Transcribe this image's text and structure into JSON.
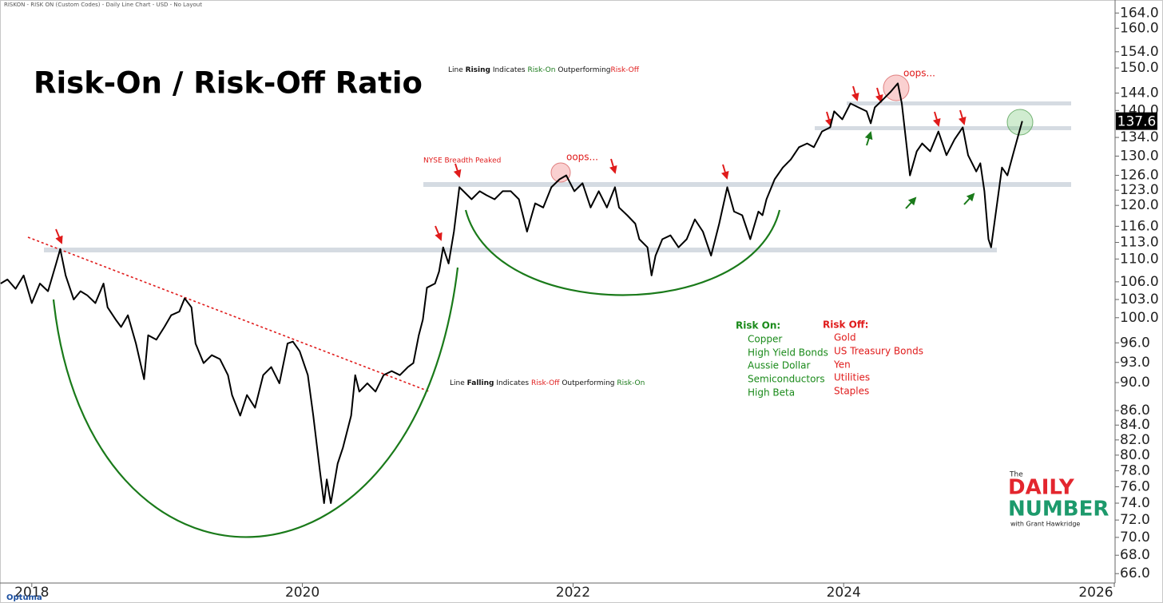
{
  "chart_data": {
    "type": "line",
    "header": "RISKON - RISK ON (Custom Codes) - Daily Line Chart - USD - No Layout",
    "title": "Risk-On / Risk-Off Ratio",
    "color": "#000000",
    "log_scale": true,
    "grid": false,
    "x": [
      2017.77,
      2017.82,
      2017.88,
      2017.94,
      2018.0,
      2018.06,
      2018.12,
      2018.18,
      2018.21,
      2018.25,
      2018.31,
      2018.36,
      2018.41,
      2018.47,
      2018.53,
      2018.56,
      2018.62,
      2018.66,
      2018.71,
      2018.77,
      2018.83,
      2018.86,
      2018.92,
      2018.98,
      2019.03,
      2019.09,
      2019.13,
      2019.18,
      2019.21,
      2019.27,
      2019.33,
      2019.39,
      2019.45,
      2019.48,
      2019.54,
      2019.59,
      2019.65,
      2019.71,
      2019.77,
      2019.83,
      2019.89,
      2019.93,
      2019.98,
      2020.04,
      2020.08,
      2020.13,
      2020.16,
      2020.18,
      2020.21,
      2020.26,
      2020.3,
      2020.36,
      2020.39,
      2020.42,
      2020.48,
      2020.54,
      2020.6,
      2020.66,
      2020.72,
      2020.78,
      2020.82,
      2020.86,
      2020.89,
      2020.92,
      2020.98,
      2021.01,
      2021.04,
      2021.08,
      2021.12,
      2021.16,
      2021.19,
      2021.25,
      2021.31,
      2021.36,
      2021.42,
      2021.48,
      2021.54,
      2021.6,
      2021.66,
      2021.72,
      2021.78,
      2021.84,
      2021.9,
      2021.95,
      2022.01,
      2022.07,
      2022.13,
      2022.19,
      2022.25,
      2022.31,
      2022.34,
      2022.4,
      2022.46,
      2022.49,
      2022.55,
      2022.58,
      2022.61,
      2022.66,
      2022.72,
      2022.78,
      2022.84,
      2022.9,
      2022.96,
      2023.02,
      2023.08,
      2023.14,
      2023.19,
      2023.25,
      2023.31,
      2023.37,
      2023.4,
      2023.43,
      2023.49,
      2023.55,
      2023.61,
      2023.67,
      2023.73,
      2023.78,
      2023.84,
      2023.9,
      2023.93,
      2023.99,
      2024.05,
      2024.11,
      2024.17,
      2024.2,
      2024.23,
      2024.29,
      2024.35,
      2024.4,
      2024.43,
      2024.46,
      2024.49,
      2024.54,
      2024.58,
      2024.64,
      2024.7,
      2024.76,
      2024.82,
      2024.88,
      2024.92,
      2024.98,
      2025.01,
      2025.04,
      2025.07,
      2025.09,
      2025.13,
      2025.17,
      2025.21,
      2025.25,
      2025.29,
      2025.32
    ],
    "values": [
      105.7,
      106.4,
      104.8,
      107.1,
      102.4,
      105.7,
      104.4,
      109.2,
      111.8,
      107.1,
      103.0,
      104.4,
      103.7,
      102.4,
      105.7,
      101.7,
      99.7,
      98.5,
      100.4,
      95.9,
      90.5,
      97.2,
      96.5,
      98.5,
      100.4,
      101.0,
      103.2,
      101.7,
      95.9,
      92.9,
      94.1,
      93.5,
      91.1,
      88.2,
      85.3,
      88.2,
      86.4,
      91.1,
      92.3,
      89.9,
      95.9,
      96.2,
      94.7,
      91.1,
      85.3,
      77.9,
      74.0,
      76.9,
      74.0,
      78.9,
      81.0,
      85.3,
      91.1,
      88.7,
      89.9,
      88.7,
      91.1,
      91.7,
      91.1,
      92.3,
      92.9,
      97.2,
      99.7,
      105.0,
      105.7,
      107.8,
      112.1,
      109.2,
      115.0,
      123.6,
      122.8,
      121.2,
      122.8,
      122.0,
      121.2,
      122.8,
      122.8,
      121.2,
      115.0,
      120.4,
      119.6,
      123.6,
      125.2,
      126.0,
      122.8,
      124.4,
      119.6,
      122.8,
      119.6,
      123.6,
      119.6,
      118.1,
      116.5,
      113.6,
      112.1,
      107.1,
      110.6,
      113.6,
      114.3,
      112.1,
      113.6,
      117.3,
      115.0,
      110.6,
      116.5,
      123.6,
      118.8,
      118.1,
      113.6,
      118.8,
      118.1,
      121.2,
      125.2,
      127.6,
      129.3,
      131.9,
      132.7,
      131.9,
      135.3,
      136.2,
      139.8,
      138.0,
      141.6,
      140.7,
      139.8,
      137.1,
      140.7,
      142.5,
      144.4,
      146.3,
      141.6,
      133.6,
      126.0,
      131.0,
      132.7,
      131.0,
      135.3,
      130.2,
      133.6,
      136.2,
      130.2,
      126.8,
      128.5,
      122.8,
      113.6,
      112.1,
      119.6,
      127.6,
      126.0,
      130.2,
      134.4,
      137.6
    ],
    "xlim": [
      2017.765,
      2026.0
    ],
    "xticks": [
      2018,
      2020,
      2022,
      2024,
      2026
    ],
    "ylim": [
      65,
      167.5
    ],
    "yticks": [
      {
        "value": 66,
        "label": "66.0"
      },
      {
        "value": 68,
        "label": "68.0"
      },
      {
        "value": 70,
        "label": "70.0"
      },
      {
        "value": 72,
        "label": "72.0"
      },
      {
        "value": 74,
        "label": "74.0"
      },
      {
        "value": 76,
        "label": "76.0"
      },
      {
        "value": 78,
        "label": "78.0"
      },
      {
        "value": 80,
        "label": "80.0"
      },
      {
        "value": 82,
        "label": "82.0"
      },
      {
        "value": 84,
        "label": "84.0"
      },
      {
        "value": 86,
        "label": "86.0"
      },
      {
        "value": 90,
        "label": "90.0"
      },
      {
        "value": 93,
        "label": "93.0"
      },
      {
        "value": 96,
        "label": "96.0"
      },
      {
        "value": 100,
        "label": "100.0"
      },
      {
        "value": 103,
        "label": "103.0"
      },
      {
        "value": 106,
        "label": "106.0"
      },
      {
        "value": 110,
        "label": "110.0"
      },
      {
        "value": 113,
        "label": "113.0"
      },
      {
        "value": 116,
        "label": "116.0"
      },
      {
        "value": 120,
        "label": "120.0"
      },
      {
        "value": 123,
        "label": "123.0"
      },
      {
        "value": 126,
        "label": "126.0"
      },
      {
        "value": 130,
        "label": "130.0"
      },
      {
        "value": 134,
        "label": "134.0"
      },
      {
        "value": 140,
        "label": "140.0"
      },
      {
        "value": 144,
        "label": "144.0"
      },
      {
        "value": 150,
        "label": "150.0"
      },
      {
        "value": 154,
        "label": "154.0"
      },
      {
        "value": 160,
        "label": "160.0"
      },
      {
        "value": 164,
        "label": "164.0"
      }
    ],
    "rising_note": [
      "Line",
      "Rising",
      "Indicates",
      "Risk-On",
      "Outperforming",
      "Risk-Off"
    ],
    "falling_note": [
      "Line",
      "Falling",
      "Indicates",
      "Risk-Off",
      "Outperforming",
      "Risk-On"
    ],
    "breadth_note": "NYSE Breadth Peaked",
    "oops_notes": [
      "oops...",
      "oops..."
    ],
    "risk_on": {
      "title": "Risk On:",
      "items": [
        "Copper",
        "High Yield Bonds",
        "Aussie Dollar",
        "Semiconductors",
        "High Beta"
      ]
    },
    "risk_off": {
      "title": "Risk Off:",
      "items": [
        "Gold",
        "US Treasury Bonds",
        "Yen",
        "Utilities",
        "Staples"
      ]
    },
    "logo": {
      "the": "The",
      "daily": "DAILY",
      "number": "NUMBER",
      "byline": "with Grant Hawkridge"
    },
    "source": "Optuma"
  }
}
